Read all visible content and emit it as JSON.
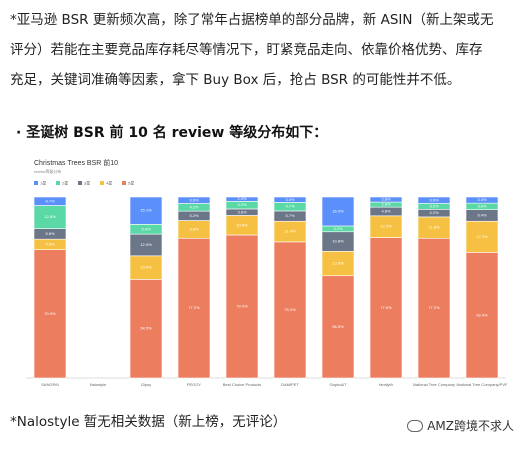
{
  "paragraph_lines": [
    "*亚马逊 BSR 更新频次高，除了常年占据榜单的部分品牌，新 ASIN（新上架或无",
    "评分）若能在主要竞品库存耗尽等情况下，盯紧竞品走向、依靠价格优势、库存",
    "充足，关键词准确等因素，拿下 Buy Box 后，抢占 BSR 的可能性并不低。"
  ],
  "heading": "· 圣诞树 BSR 前 10 名 review 等级分布如下：",
  "chart_data": {
    "type": "stacked_bar",
    "title": "Christmas Trees BSR 前10",
    "subtitle": "review等级分布",
    "categories": [
      "SANGPAI",
      "Nalostyle",
      "Gipsy",
      "PEGGY",
      "Best Choice Products",
      "DAMIPET",
      "Gapho&T",
      "familyth",
      "National Tree Company",
      "National Tree Company/PVF"
    ],
    "ylim": [
      0,
      100
    ],
    "series": [
      {
        "name": "1星",
        "color": "#5b8ff9",
        "values": [
          4.7,
          null,
          15.1,
          3.6,
          2.4,
          3.0,
          16.0,
          2.8,
          3.6,
          3.4
        ],
        "value_labels": [
          "4.7%",
          null,
          "15.1%",
          "3.6%",
          "2.4%",
          "3.0%",
          "16.0%",
          "2.8%",
          "3.6%",
          "3.4%"
        ]
      },
      {
        "name": "2星",
        "color": "#5ad8a6",
        "values": [
          12.8,
          null,
          5.4,
          4.2,
          4.2,
          4.7,
          3.2,
          2.8,
          3.2,
          3.6
        ],
        "value_labels": [
          "12.8%",
          null,
          "5.4%",
          "4.2%",
          "4.2%",
          "4.7%",
          "3.2%",
          "2.8%",
          "3.2%",
          "3.6%"
        ]
      },
      {
        "name": "3星",
        "color": "#6b7689",
        "values": [
          5.8,
          null,
          12.0,
          5.2,
          3.6,
          5.7,
          10.8,
          4.8,
          4.2,
          6.4
        ],
        "value_labels": [
          "5.8%",
          null,
          "12.0%",
          "5.2%",
          "3.6%",
          "5.7%",
          "10.8%",
          "4.8%",
          "4.2%",
          "6.4%"
        ]
      },
      {
        "name": "4星",
        "color": "#f6c142",
        "values": [
          5.8,
          null,
          13.0,
          9.8,
          10.8,
          11.4,
          13.5,
          12.0,
          11.8,
          17.2
        ],
        "value_labels": [
          "5.8%",
          null,
          "13.0%",
          "9.8%",
          "10.8%",
          "11.4%",
          "13.5%",
          "12.0%",
          "11.8%",
          "17.2%"
        ]
      },
      {
        "name": "5星",
        "color": "#ed7d5f",
        "values": [
          70.9,
          null,
          54.5,
          77.2,
          79.0,
          75.2,
          56.5,
          77.6,
          77.2,
          69.4
        ],
        "value_labels": [
          "70.9%",
          null,
          "54.5%",
          "77.2%",
          "79.0%",
          "75.2%",
          "56.5%",
          "77.6%",
          "77.2%",
          "69.4%"
        ]
      }
    ]
  },
  "footnote": "*Nalostyle 暂无相关数据（新上榜，无评论）",
  "watermark": "AMZ跨境不求人"
}
